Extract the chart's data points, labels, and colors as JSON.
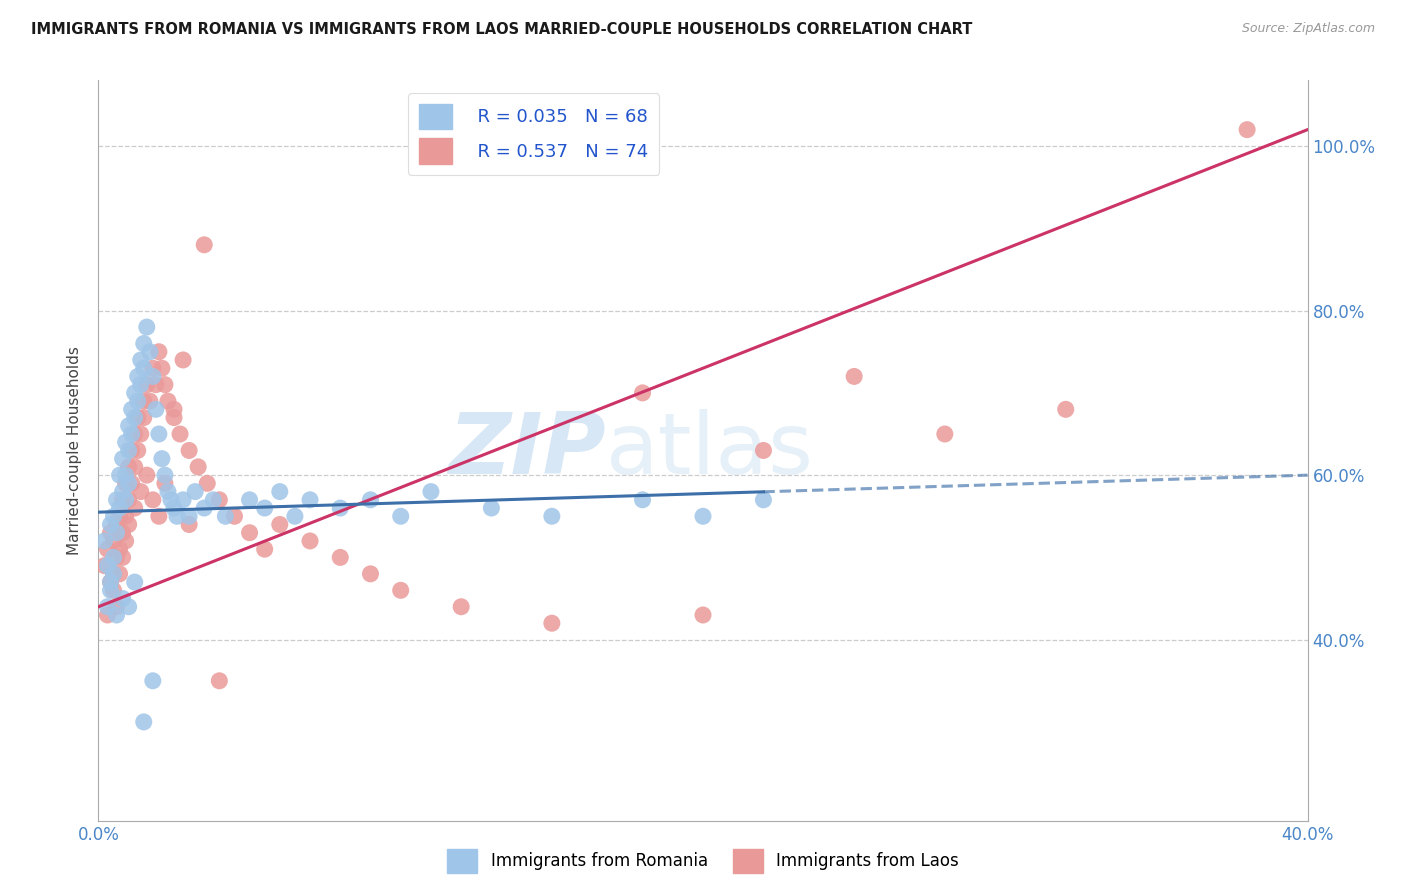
{
  "title": "IMMIGRANTS FROM ROMANIA VS IMMIGRANTS FROM LAOS MARRIED-COUPLE HOUSEHOLDS CORRELATION CHART",
  "source": "Source: ZipAtlas.com",
  "ylabel": "Married-couple Households",
  "xlim": [
    0.0,
    0.4
  ],
  "ylim": [
    0.18,
    1.08
  ],
  "xtick_labels": [
    "0.0%",
    "",
    "",
    "",
    "40.0%"
  ],
  "xtick_vals": [
    0.0,
    0.1,
    0.2,
    0.3,
    0.4
  ],
  "ytick_labels": [
    "40.0%",
    "60.0%",
    "80.0%",
    "100.0%"
  ],
  "ytick_vals": [
    0.4,
    0.6,
    0.8,
    1.0
  ],
  "legend_romania": "Immigrants from Romania",
  "legend_laos": "Immigrants from Laos",
  "r_romania": "R = 0.035",
  "n_romania": "N = 68",
  "r_laos": "R = 0.537",
  "n_laos": "N = 74",
  "romania_color": "#9fc5e8",
  "laos_color": "#ea9999",
  "romania_line_color": "#3d6fa8",
  "laos_line_color": "#cc3366",
  "romania_line_solid_end": 0.22,
  "laos_line_x0": 0.0,
  "laos_line_y0": 0.44,
  "laos_line_x1": 0.4,
  "laos_line_y1": 1.02,
  "romania_line_x0": 0.0,
  "romania_line_y0": 0.555,
  "romania_line_x1": 0.4,
  "romania_line_y1": 0.6,
  "watermark_zip": "ZIP",
  "watermark_atlas": "atlas",
  "grid_color": "#cccccc",
  "background_color": "#ffffff",
  "romania_x": [
    0.002,
    0.003,
    0.004,
    0.004,
    0.005,
    0.005,
    0.005,
    0.006,
    0.006,
    0.007,
    0.007,
    0.008,
    0.008,
    0.009,
    0.009,
    0.009,
    0.01,
    0.01,
    0.01,
    0.011,
    0.011,
    0.012,
    0.012,
    0.013,
    0.013,
    0.014,
    0.014,
    0.015,
    0.015,
    0.016,
    0.017,
    0.018,
    0.019,
    0.02,
    0.021,
    0.022,
    0.023,
    0.024,
    0.025,
    0.026,
    0.028,
    0.03,
    0.032,
    0.035,
    0.038,
    0.042,
    0.05,
    0.055,
    0.06,
    0.065,
    0.07,
    0.08,
    0.09,
    0.1,
    0.11,
    0.13,
    0.15,
    0.18,
    0.2,
    0.22,
    0.003,
    0.004,
    0.006,
    0.008,
    0.01,
    0.012,
    0.015,
    0.018
  ],
  "romania_y": [
    0.52,
    0.49,
    0.54,
    0.47,
    0.55,
    0.5,
    0.48,
    0.57,
    0.53,
    0.6,
    0.56,
    0.62,
    0.58,
    0.64,
    0.6,
    0.57,
    0.66,
    0.63,
    0.59,
    0.68,
    0.65,
    0.7,
    0.67,
    0.72,
    0.69,
    0.74,
    0.71,
    0.76,
    0.73,
    0.78,
    0.75,
    0.72,
    0.68,
    0.65,
    0.62,
    0.6,
    0.58,
    0.57,
    0.56,
    0.55,
    0.57,
    0.55,
    0.58,
    0.56,
    0.57,
    0.55,
    0.57,
    0.56,
    0.58,
    0.55,
    0.57,
    0.56,
    0.57,
    0.55,
    0.58,
    0.56,
    0.55,
    0.57,
    0.55,
    0.57,
    0.44,
    0.46,
    0.43,
    0.45,
    0.44,
    0.47,
    0.3,
    0.35
  ],
  "laos_x": [
    0.002,
    0.003,
    0.004,
    0.004,
    0.005,
    0.005,
    0.006,
    0.006,
    0.007,
    0.007,
    0.008,
    0.008,
    0.009,
    0.009,
    0.01,
    0.01,
    0.011,
    0.011,
    0.012,
    0.012,
    0.013,
    0.013,
    0.014,
    0.015,
    0.015,
    0.016,
    0.017,
    0.018,
    0.019,
    0.02,
    0.021,
    0.022,
    0.023,
    0.025,
    0.027,
    0.03,
    0.033,
    0.036,
    0.04,
    0.045,
    0.05,
    0.055,
    0.06,
    0.07,
    0.08,
    0.09,
    0.1,
    0.12,
    0.15,
    0.18,
    0.2,
    0.22,
    0.25,
    0.28,
    0.32,
    0.003,
    0.005,
    0.006,
    0.007,
    0.008,
    0.009,
    0.01,
    0.012,
    0.014,
    0.016,
    0.018,
    0.02,
    0.022,
    0.025,
    0.028,
    0.03,
    0.035,
    0.04,
    0.38
  ],
  "laos_y": [
    0.49,
    0.51,
    0.47,
    0.53,
    0.48,
    0.52,
    0.5,
    0.54,
    0.51,
    0.55,
    0.53,
    0.57,
    0.55,
    0.59,
    0.57,
    0.61,
    0.59,
    0.63,
    0.61,
    0.65,
    0.63,
    0.67,
    0.65,
    0.69,
    0.67,
    0.71,
    0.69,
    0.73,
    0.71,
    0.75,
    0.73,
    0.71,
    0.69,
    0.67,
    0.65,
    0.63,
    0.61,
    0.59,
    0.57,
    0.55,
    0.53,
    0.51,
    0.54,
    0.52,
    0.5,
    0.48,
    0.46,
    0.44,
    0.42,
    0.7,
    0.43,
    0.63,
    0.72,
    0.65,
    0.68,
    0.43,
    0.46,
    0.44,
    0.48,
    0.5,
    0.52,
    0.54,
    0.56,
    0.58,
    0.6,
    0.57,
    0.55,
    0.59,
    0.68,
    0.74,
    0.54,
    0.88,
    0.35,
    1.02
  ]
}
